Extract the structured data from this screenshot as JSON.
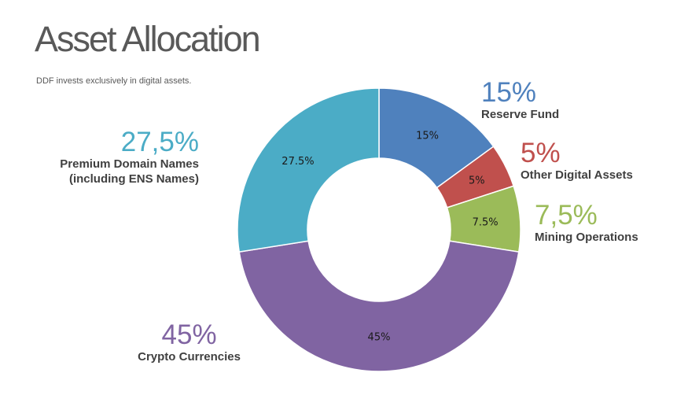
{
  "header": {
    "title": "Asset Allocation",
    "subtitle": "DDF invests exclusively in digital assets."
  },
  "callouts": {
    "reserve_fund": {
      "pct": "15%",
      "line1": "Reserve Fund"
    },
    "other_digital": {
      "pct": "5%",
      "line1": "Other Digital Assets"
    },
    "mining": {
      "pct": "7,5%",
      "line1": "Mining Operations"
    },
    "crypto": {
      "pct": "45%",
      "line1": "Crypto Currencies"
    },
    "domains": {
      "pct": "27,5%",
      "line1": "Premium Domain Names",
      "line2": "(including ENS Names)"
    }
  },
  "chart_data": {
    "type": "pie",
    "donut": true,
    "categories": [
      "Reserve Fund",
      "Other Digital Assets",
      "Mining Operations",
      "Crypto Currencies",
      "Premium Domain Names (including ENS Names)"
    ],
    "values": [
      15,
      5,
      7.5,
      45,
      27.5
    ],
    "slice_labels": [
      "15%",
      "5%",
      "7.5%",
      "45%",
      "27.5%"
    ],
    "colors": [
      "#4f81bd",
      "#c0504d",
      "#9bbb59",
      "#8064a2",
      "#4bacc6"
    ]
  }
}
